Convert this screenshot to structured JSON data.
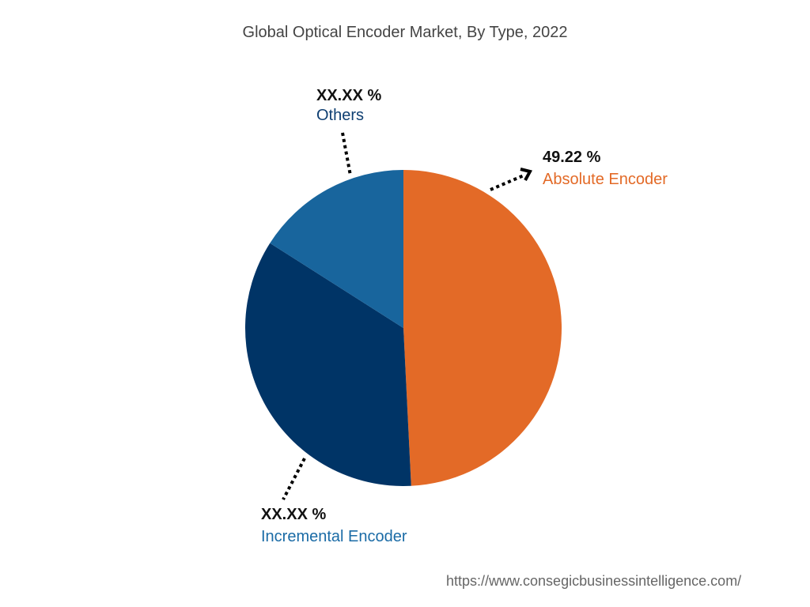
{
  "chart_data": {
    "type": "pie",
    "title": "Global Optical Encoder Market, By Type, 2022",
    "categories": [
      "Absolute Encoder",
      "Incremental Encoder",
      "Others"
    ],
    "values": [
      49.22,
      34.8,
      15.98
    ],
    "value_labels": [
      "49.22 %",
      "XX.XX %",
      "XX.XX %"
    ],
    "colors": [
      "#E36A27",
      "#003466",
      "#18659D"
    ],
    "label_colors": [
      "#E36A27",
      "#1A6BA6",
      "#0F3F72"
    ],
    "start": "top, clockwise"
  },
  "footer": {
    "url": "https://www.consegicbusinessintelligence.com/"
  }
}
